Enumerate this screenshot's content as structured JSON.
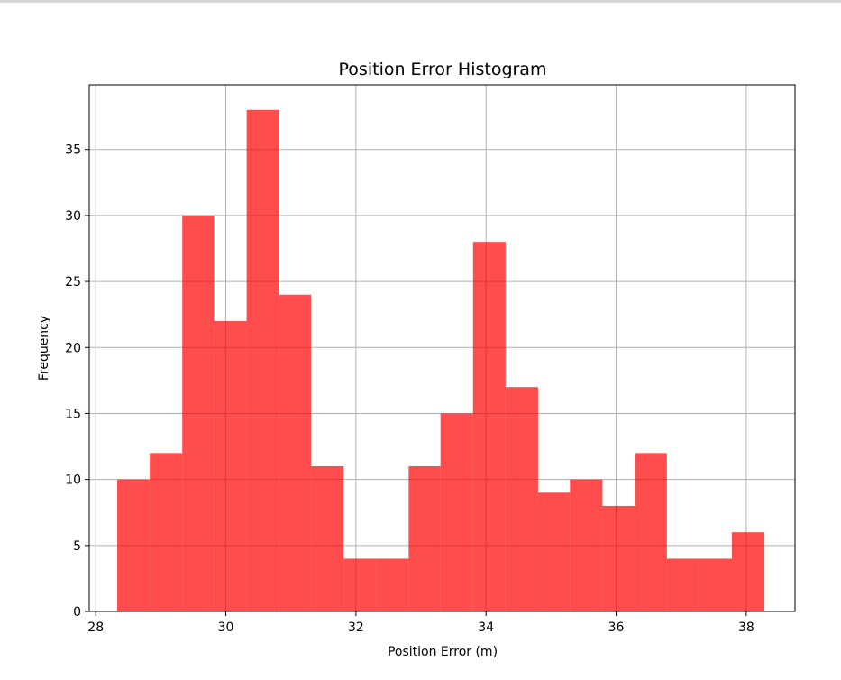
{
  "chart_data": {
    "type": "bar",
    "title": "Position Error Histogram",
    "xlabel": "Position Error (m)",
    "ylabel": "Frequency",
    "xlim": [
      27.9,
      38.75
    ],
    "ylim": [
      0,
      39.9
    ],
    "xticks": [
      28,
      30,
      32,
      34,
      36,
      38
    ],
    "yticks": [
      0,
      5,
      10,
      15,
      20,
      25,
      30,
      35
    ],
    "grid": true,
    "bar_color": "#ff0000",
    "bar_alpha": 0.7,
    "bin_edges": [
      28.33,
      28.83,
      29.33,
      29.82,
      30.32,
      30.82,
      31.31,
      31.81,
      32.31,
      32.81,
      33.3,
      33.8,
      34.3,
      34.8,
      35.29,
      35.79,
      36.29,
      36.78,
      37.28,
      37.78,
      38.28
    ],
    "counts": [
      10,
      12,
      30,
      22,
      38,
      24,
      11,
      4,
      4,
      11,
      15,
      28,
      17,
      9,
      10,
      8,
      12,
      4,
      4,
      6
    ]
  }
}
